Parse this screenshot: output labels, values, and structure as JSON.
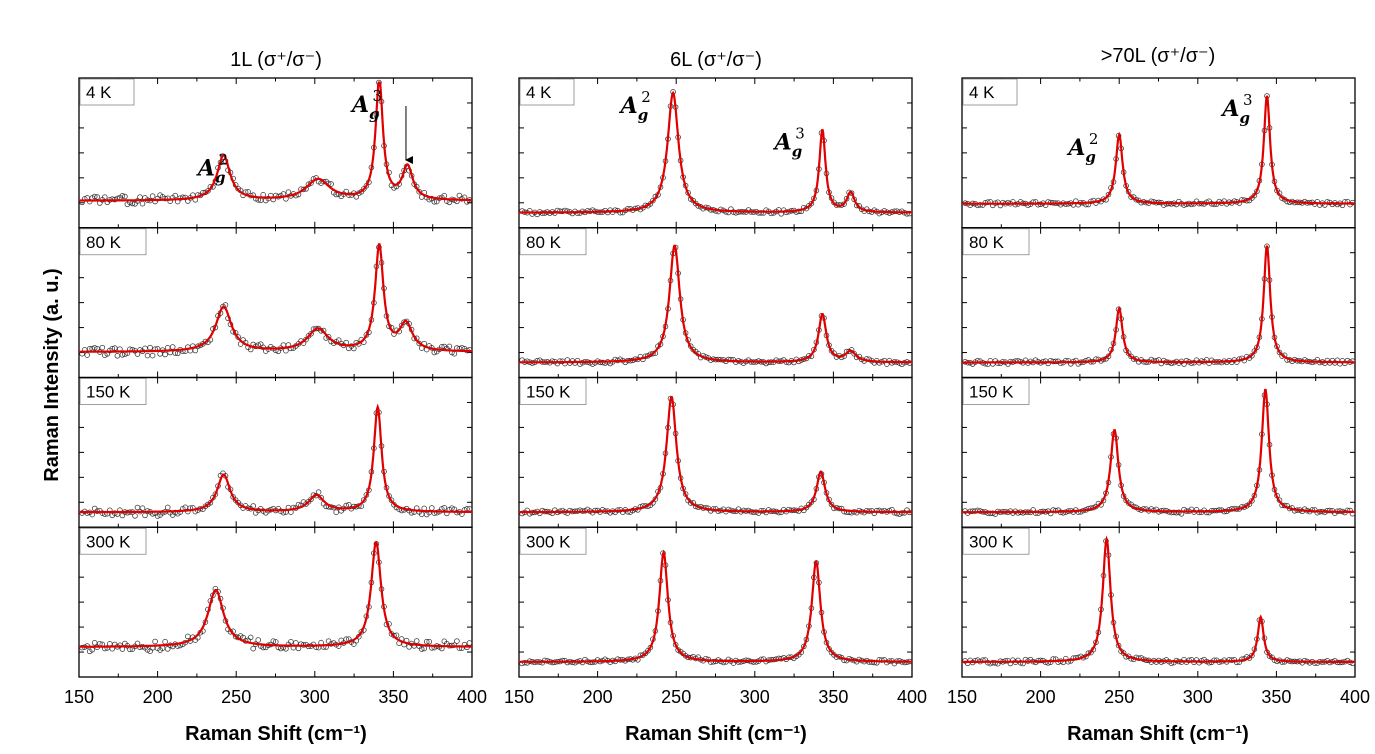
{
  "y_axis_label": "Raman Intensity (a. u.)",
  "colors": {
    "fit": "#e00000",
    "data_marker": "#333333",
    "frame": "#000000"
  },
  "chart_data": [
    {
      "type": "scatter",
      "title": "1L (σ⁺/σ⁻)",
      "xlabel": "Raman Shift (cm⁻¹)",
      "xlim": [
        150,
        400
      ],
      "xticks": [
        "150",
        "200",
        "250",
        "300",
        "350",
        "400"
      ],
      "peak_labels": [
        {
          "base": "A",
          "sub": "g",
          "sup": "2",
          "x": 232
        },
        {
          "base": "A",
          "sub": "g",
          "sup": "3",
          "x": 330
        }
      ],
      "arrow_at": 358,
      "panels": [
        {
          "label": "4 K",
          "baseline": 0.18,
          "noise": 0.025,
          "seed": 11,
          "peaks": [
            {
              "center": 242,
              "height": 0.3,
              "width": 5
            },
            {
              "center": 302,
              "height": 0.14,
              "width": 9
            },
            {
              "center": 341,
              "height": 0.8,
              "width": 2.8
            },
            {
              "center": 359,
              "height": 0.22,
              "width": 4
            }
          ]
        },
        {
          "label": "80 K",
          "baseline": 0.17,
          "noise": 0.025,
          "seed": 12,
          "peaks": [
            {
              "center": 242,
              "height": 0.3,
              "width": 6
            },
            {
              "center": 302,
              "height": 0.15,
              "width": 8
            },
            {
              "center": 341,
              "height": 0.7,
              "width": 3.2
            },
            {
              "center": 358,
              "height": 0.18,
              "width": 5
            }
          ]
        },
        {
          "label": "150 K",
          "baseline": 0.1,
          "noise": 0.025,
          "seed": 13,
          "peaks": [
            {
              "center": 242,
              "height": 0.25,
              "width": 5
            },
            {
              "center": 301,
              "height": 0.11,
              "width": 6
            },
            {
              "center": 340,
              "height": 0.7,
              "width": 3
            }
          ]
        },
        {
          "label": "300 K",
          "baseline": 0.2,
          "noise": 0.03,
          "seed": 14,
          "peaks": [
            {
              "center": 237,
              "height": 0.38,
              "width": 6
            },
            {
              "center": 339,
              "height": 0.7,
              "width": 3.8
            }
          ]
        }
      ]
    },
    {
      "type": "scatter",
      "title": "6L (σ⁺/σ⁻)",
      "xlabel": "Raman Shift (cm⁻¹)",
      "xlim": [
        150,
        400
      ],
      "xticks": [
        "150",
        "200",
        "250",
        "300",
        "350",
        "400"
      ],
      "peak_labels": [
        {
          "base": "A",
          "sub": "g",
          "sup": "2",
          "x": 221
        },
        {
          "base": "A",
          "sub": "g",
          "sup": "3",
          "x": 319
        }
      ],
      "panels": [
        {
          "label": "4 K",
          "baseline": 0.1,
          "noise": 0.012,
          "seed": 21,
          "peaks": [
            {
              "center": 248,
              "height": 0.8,
              "width": 4.2
            },
            {
              "center": 343,
              "height": 0.55,
              "width": 2.4
            },
            {
              "center": 361,
              "height": 0.13,
              "width": 3
            }
          ]
        },
        {
          "label": "80 K",
          "baseline": 0.1,
          "noise": 0.012,
          "seed": 22,
          "peaks": [
            {
              "center": 249,
              "height": 0.78,
              "width": 4
            },
            {
              "center": 343,
              "height": 0.32,
              "width": 3
            },
            {
              "center": 361,
              "height": 0.07,
              "width": 4
            }
          ]
        },
        {
          "label": "150 K",
          "baseline": 0.1,
          "noise": 0.012,
          "seed": 23,
          "peaks": [
            {
              "center": 247,
              "height": 0.77,
              "width": 3.8
            },
            {
              "center": 342,
              "height": 0.27,
              "width": 3.3
            }
          ]
        },
        {
          "label": "300 K",
          "baseline": 0.1,
          "noise": 0.012,
          "seed": 24,
          "peaks": [
            {
              "center": 242,
              "height": 0.73,
              "width": 3.3
            },
            {
              "center": 339,
              "height": 0.67,
              "width": 3.3
            }
          ]
        }
      ]
    },
    {
      "type": "scatter",
      "title": ">70L (σ⁺/σ⁻)",
      "xlabel": "Raman Shift (cm⁻¹)",
      "xlim": [
        150,
        400
      ],
      "xticks": [
        "150",
        "200",
        "250",
        "300",
        "350",
        "400"
      ],
      "peak_labels": [
        {
          "base": "A",
          "sub": "g",
          "sup": "2",
          "x": 224
        },
        {
          "base": "A",
          "sub": "g",
          "sup": "3",
          "x": 322
        }
      ],
      "panels": [
        {
          "label": "4 K",
          "baseline": 0.16,
          "noise": 0.012,
          "seed": 31,
          "peaks": [
            {
              "center": 250,
              "height": 0.46,
              "width": 2.6
            },
            {
              "center": 344,
              "height": 0.72,
              "width": 2.4
            }
          ]
        },
        {
          "label": "80 K",
          "baseline": 0.1,
          "noise": 0.012,
          "seed": 32,
          "peaks": [
            {
              "center": 250,
              "height": 0.36,
              "width": 2.6
            },
            {
              "center": 344,
              "height": 0.78,
              "width": 2.5
            }
          ]
        },
        {
          "label": "150 K",
          "baseline": 0.1,
          "noise": 0.012,
          "seed": 33,
          "peaks": [
            {
              "center": 247,
              "height": 0.55,
              "width": 3
            },
            {
              "center": 343,
              "height": 0.82,
              "width": 2.8
            }
          ]
        },
        {
          "label": "300 K",
          "baseline": 0.1,
          "noise": 0.012,
          "seed": 34,
          "peaks": [
            {
              "center": 242,
              "height": 0.82,
              "width": 3
            },
            {
              "center": 340,
              "height": 0.3,
              "width": 2.3
            }
          ]
        }
      ]
    }
  ]
}
